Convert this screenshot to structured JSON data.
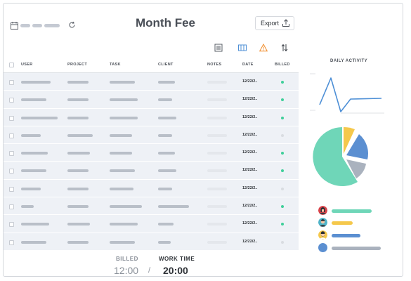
{
  "header": {
    "title": "Month Fee",
    "export_label": "Export"
  },
  "toolbar_icons": [
    "list-icon",
    "columns-icon",
    "warning-icon",
    "sort-icon"
  ],
  "table": {
    "columns": [
      "USER",
      "PROJECT",
      "TASK",
      "CLIENT",
      "NOTES",
      "DATE",
      "BILLED"
    ],
    "rows": [
      {
        "date": "12/22/2..",
        "billed": true
      },
      {
        "date": "12/22/2..",
        "billed": true
      },
      {
        "date": "12/22/2..",
        "billed": true
      },
      {
        "date": "12/22/2..",
        "billed": false
      },
      {
        "date": "12/22/2..",
        "billed": true
      },
      {
        "date": "12/22/2..",
        "billed": true
      },
      {
        "date": "12/22/2..",
        "billed": false
      },
      {
        "date": "12/22/2..",
        "billed": true
      },
      {
        "date": "12/22/2..",
        "billed": true
      },
      {
        "date": "12/22/2..",
        "billed": false
      }
    ]
  },
  "footer": {
    "billed_label": "BILLED",
    "billed_value": "12:00",
    "separator": "/",
    "work_time_label": "WORK TIME",
    "work_time_value": "20:00"
  },
  "sidebar": {
    "daily_activity_title": "DAILY ACTIVITY",
    "legend": [
      {
        "icon": "avatar-woman-icon",
        "color": "#6fd6b8"
      },
      {
        "icon": "avatar-man-icon",
        "color": "#f5c84b"
      },
      {
        "icon": "avatar-beard-icon",
        "color": "#5b8fd1"
      },
      {
        "icon": "avatar-blank-icon",
        "color": "#aab2be"
      }
    ]
  },
  "colors": {
    "billed_dot": "#3fcf9a",
    "unbilled_dot": "#d9dce1",
    "line": "#4d8fd6",
    "warning": "#f08c2a"
  }
}
